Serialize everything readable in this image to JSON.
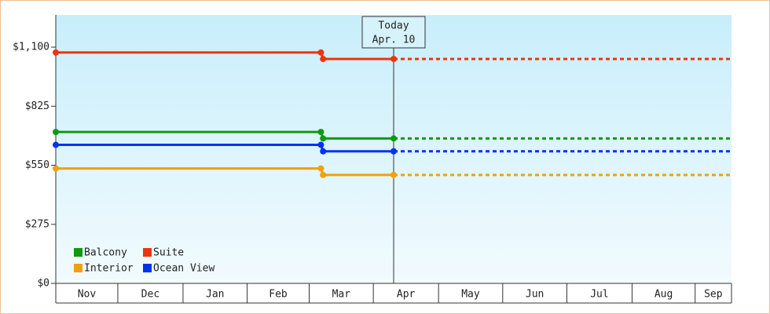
{
  "chart_data": {
    "type": "line",
    "xlim": [
      0,
      316
    ],
    "xticks": [
      {
        "value": 14,
        "label": "Nov"
      },
      {
        "value": 44,
        "label": "Dec"
      },
      {
        "value": 75,
        "label": "Jan"
      },
      {
        "value": 104,
        "label": "Feb"
      },
      {
        "value": 133,
        "label": "Mar"
      },
      {
        "value": 164,
        "label": "Apr"
      },
      {
        "value": 194,
        "label": "May"
      },
      {
        "value": 224,
        "label": "Jun"
      },
      {
        "value": 254,
        "label": "Jul"
      },
      {
        "value": 285,
        "label": "Aug"
      },
      {
        "value": 313,
        "label": "Sep"
      }
    ],
    "ylim": [
      0,
      1250
    ],
    "yticks": [
      {
        "value": 0,
        "label": "$0"
      },
      {
        "value": 275,
        "label": "$275"
      },
      {
        "value": 550,
        "label": "$550"
      },
      {
        "value": 825,
        "label": "$825"
      },
      {
        "value": 1100,
        "label": "$1,100"
      }
    ],
    "today": {
      "x": 158,
      "label": "Today",
      "date": "Apr. 10"
    },
    "series": [
      {
        "name": "Balcony",
        "color": "#119911",
        "x": [
          0,
          124,
          125,
          158,
          316
        ],
        "values": [
          705,
          705,
          675,
          675,
          675
        ]
      },
      {
        "name": "Suite",
        "color": "#ee3311",
        "x": [
          0,
          124,
          125,
          158,
          316
        ],
        "values": [
          1075,
          1075,
          1045,
          1045,
          1045
        ]
      },
      {
        "name": "Interior",
        "color": "#f0a010",
        "x": [
          0,
          124,
          125,
          158,
          316
        ],
        "values": [
          535,
          535,
          505,
          505,
          505
        ]
      },
      {
        "name": "Ocean View",
        "color": "#0033ee",
        "x": [
          0,
          124,
          125,
          158,
          316
        ],
        "values": [
          645,
          645,
          615,
          615,
          615
        ]
      }
    ]
  }
}
